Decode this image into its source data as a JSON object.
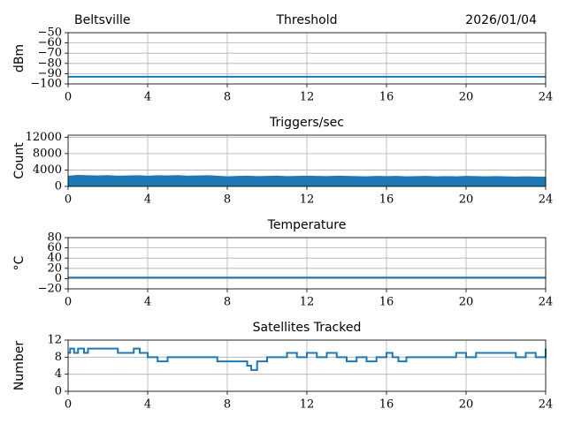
{
  "chart_data": [
    {
      "type": "line",
      "title": "Threshold",
      "location": "Beltsville",
      "date": "2026/01/04",
      "ylabel": "dBm",
      "color": "#1f77b4",
      "grid": true,
      "x": [
        0,
        24
      ],
      "values": [
        -93,
        -93
      ],
      "xlim": [
        0,
        24
      ],
      "xticks": [
        0,
        4,
        8,
        12,
        16,
        20,
        24
      ],
      "ylim": [
        -100,
        -50
      ],
      "yticks": [
        {
          "value": -100,
          "label": "−100"
        },
        {
          "value": -90,
          "label": "−90"
        },
        {
          "value": -80,
          "label": "−80"
        },
        {
          "value": -70,
          "label": "−70"
        },
        {
          "value": -60,
          "label": "−60"
        },
        {
          "value": -50,
          "label": "−50"
        }
      ]
    },
    {
      "type": "area",
      "title": "Triggers/sec",
      "ylabel": "Count",
      "color": "#1f77b4",
      "grid": true,
      "x": [
        0,
        0.5,
        1,
        1.5,
        2,
        2.5,
        3,
        3.5,
        4,
        4.5,
        5,
        5.5,
        6,
        6.5,
        7,
        7.5,
        8,
        8.5,
        9,
        9.5,
        10,
        10.5,
        11,
        11.5,
        12,
        12.5,
        13,
        13.5,
        14,
        14.5,
        15,
        15.5,
        16,
        16.5,
        17,
        17.5,
        18,
        18.5,
        19,
        19.5,
        20,
        20.5,
        21,
        21.5,
        22,
        22.5,
        23,
        23.5,
        24
      ],
      "values": [
        2500,
        2700,
        2600,
        2550,
        2650,
        2500,
        2550,
        2600,
        2500,
        2600,
        2550,
        2650,
        2500,
        2550,
        2600,
        2500,
        2350,
        2450,
        2500,
        2400,
        2450,
        2500,
        2400,
        2450,
        2500,
        2450,
        2400,
        2500,
        2450,
        2400,
        2350,
        2450,
        2400,
        2450,
        2350,
        2400,
        2450,
        2350,
        2400,
        2350,
        2450,
        2400,
        2350,
        2400,
        2350,
        2300,
        2350,
        2300,
        2250
      ],
      "xlim": [
        0,
        24
      ],
      "xticks": [
        0,
        4,
        8,
        12,
        16,
        20,
        24
      ],
      "ylim": [
        0,
        12500
      ],
      "yticks": [
        0,
        4000,
        8000,
        12000
      ]
    },
    {
      "type": "line",
      "title": "Temperature",
      "ylabel": "°C",
      "color": "#1f77b4",
      "grid": true,
      "x": [
        0,
        24
      ],
      "values": [
        2,
        2
      ],
      "xlim": [
        0,
        24
      ],
      "xticks": [
        0,
        4,
        8,
        12,
        16,
        20,
        24
      ],
      "ylim": [
        -20,
        80
      ],
      "yticks": [
        {
          "value": -20,
          "label": "−20"
        },
        0,
        20,
        40,
        60,
        80
      ]
    },
    {
      "type": "step",
      "title": "Satellites Tracked",
      "ylabel": "Number",
      "color": "#1f77b4",
      "grid": true,
      "x": [
        0,
        0.1,
        0.3,
        0.5,
        0.8,
        1,
        1.5,
        2,
        2.5,
        3,
        3.3,
        3.6,
        4,
        4.5,
        5,
        5.5,
        6,
        6.5,
        7,
        7.5,
        8,
        8.5,
        9,
        9.2,
        9.5,
        10,
        10.5,
        11,
        11.5,
        12,
        12.5,
        13,
        13.5,
        14,
        14.5,
        15,
        15.5,
        16,
        16.3,
        16.6,
        17,
        18,
        19,
        19.5,
        20,
        20.5,
        21,
        22,
        22.5,
        23,
        23.5,
        24
      ],
      "values": [
        9,
        10,
        9,
        10,
        9,
        10,
        10,
        10,
        9,
        9,
        10,
        9,
        8,
        7,
        8,
        8,
        8,
        8,
        8,
        7,
        7,
        7,
        6,
        5,
        7,
        8,
        8,
        9,
        8,
        9,
        8,
        9,
        8,
        7,
        8,
        7,
        8,
        9,
        8,
        7,
        8,
        8,
        8,
        9,
        8,
        9,
        9,
        9,
        8,
        9,
        8,
        10
      ],
      "xlim": [
        0,
        24
      ],
      "xticks": [
        0,
        4,
        8,
        12,
        16,
        20,
        24
      ],
      "ylim": [
        0,
        12
      ],
      "yticks": [
        0,
        4,
        8,
        12
      ]
    }
  ]
}
